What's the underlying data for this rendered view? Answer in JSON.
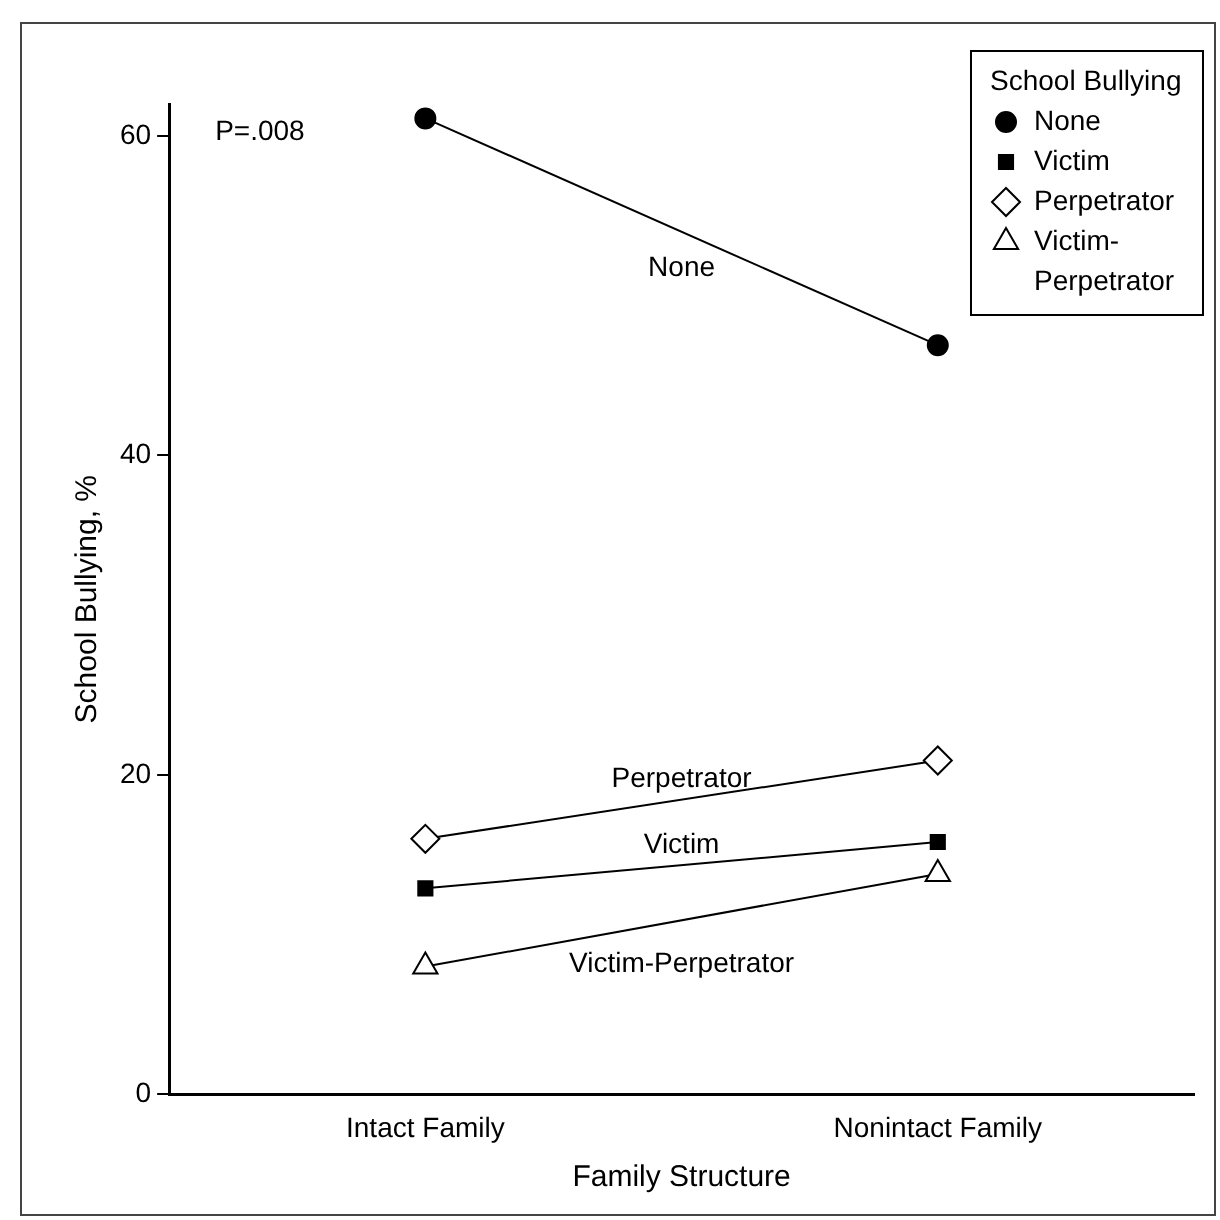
{
  "chart_data": {
    "type": "line",
    "xlabel": "Family Structure",
    "ylabel": "School Bullying, %",
    "legend_title": "School Bullying",
    "categories": [
      "Intact Family",
      "Nonintact Family"
    ],
    "series": [
      {
        "name": "None",
        "color": "#000000",
        "marker": "circle",
        "values": [
          61.1,
          46.9
        ]
      },
      {
        "name": "Victim",
        "color": "#000000",
        "marker": "square",
        "values": [
          12.9,
          15.8
        ]
      },
      {
        "name": "Perpetrator",
        "color": "#000000",
        "marker": "diamond",
        "values": [
          16.0,
          20.9
        ]
      },
      {
        "name": "Victim-Perpetrator",
        "color": "#000000",
        "marker": "triangle",
        "values": [
          8.0,
          13.8
        ]
      }
    ],
    "ylim": [
      0,
      62
    ],
    "yticks": [
      0,
      20,
      40,
      60
    ],
    "annotations": [
      "P=.008"
    ],
    "grid": false,
    "legend": "top right"
  }
}
